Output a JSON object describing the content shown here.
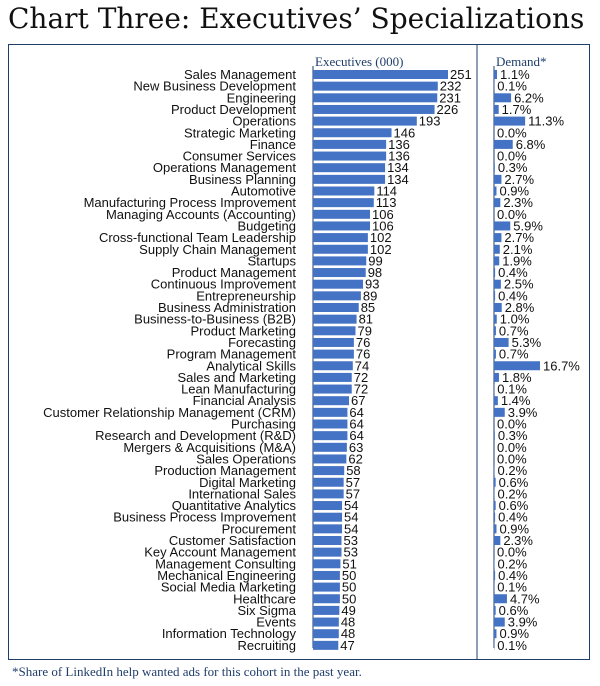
{
  "title": "Chart Three: Executives’ Specializations",
  "footnote": "*Share of LinkedIn help wanted ads for this cohort in the past year.",
  "colors": {
    "bar": "#4472c4",
    "accent": "#1f3d6b"
  },
  "chart_data": [
    {
      "type": "bar",
      "orientation": "horizontal",
      "header": "Executives (000)",
      "categories": [
        "Sales Management",
        "New Business Development",
        "Engineering",
        "Product Development",
        "Operations",
        "Strategic Marketing",
        "Finance",
        "Consumer Services",
        "Operations Management",
        "Business Planning",
        "Automotive",
        "Manufacturing Process Improvement",
        "Managing Accounts (Accounting)",
        "Budgeting",
        "Cross-functional Team Leadership",
        "Supply Chain Management",
        "Startups",
        "Product Management",
        "Continuous Improvement",
        "Entrepreneurship",
        "Business Administration",
        "Business-to-Business (B2B)",
        "Product Marketing",
        "Forecasting",
        "Program Management",
        "Analytical Skills",
        "Sales and Marketing",
        "Lean Manufacturing",
        "Financial Analysis",
        "Customer Relationship Management (CRM)",
        "Purchasing",
        "Research and Development (R&D)",
        "Mergers & Acquisitions (M&A)",
        "Sales Operations",
        "Production Management",
        "Digital Marketing",
        "International Sales",
        "Quantitative Analytics",
        "Business Process Improvement",
        "Procurement",
        "Customer Satisfaction",
        "Key Account Management",
        "Management Consulting",
        "Mechanical Engineering",
        "Social Media Marketing",
        "Healthcare",
        "Six Sigma",
        "Events",
        "Information Technology",
        "Recruiting"
      ],
      "values": [
        251,
        232,
        231,
        226,
        193,
        146,
        136,
        136,
        134,
        134,
        114,
        113,
        106,
        106,
        102,
        102,
        99,
        98,
        93,
        89,
        85,
        81,
        79,
        76,
        76,
        74,
        72,
        72,
        67,
        64,
        64,
        64,
        63,
        62,
        58,
        57,
        57,
        54,
        54,
        54,
        53,
        53,
        51,
        50,
        50,
        50,
        49,
        48,
        48,
        47
      ],
      "value_labels": [
        "251",
        "232",
        "231",
        "226",
        "193",
        "146",
        "136",
        "136",
        "134",
        "134",
        "114",
        "113",
        "106",
        "106",
        "102",
        "102",
        "99",
        "98",
        "93",
        "89",
        "85",
        "81",
        "79",
        "76",
        "76",
        "74",
        "72",
        "72",
        "67",
        "64",
        "64",
        "64",
        "63",
        "62",
        "58",
        "57",
        "57",
        "54",
        "54",
        "54",
        "53",
        "53",
        "51",
        "50",
        "50",
        "50",
        "49",
        "48",
        "48",
        "47"
      ],
      "xlim": [
        0,
        251
      ]
    },
    {
      "type": "bar",
      "orientation": "horizontal",
      "header": "Demand*",
      "values": [
        1.1,
        0.1,
        6.2,
        1.7,
        11.3,
        0.0,
        6.8,
        0.0,
        0.3,
        2.7,
        0.9,
        2.3,
        0.0,
        5.9,
        2.7,
        2.1,
        1.9,
        0.4,
        2.5,
        0.4,
        2.8,
        1.0,
        0.7,
        5.3,
        0.7,
        16.7,
        1.8,
        0.1,
        1.4,
        3.9,
        0.0,
        0.3,
        0.0,
        0.0,
        0.2,
        0.6,
        0.2,
        0.6,
        0.4,
        0.9,
        2.3,
        0.0,
        0.2,
        0.4,
        0.1,
        4.7,
        0.6,
        3.9,
        0.9,
        0.1
      ],
      "value_labels": [
        "1.1%",
        "0.1%",
        "6.2%",
        "1.7%",
        "11.3%",
        "0.0%",
        "6.8%",
        "0.0%",
        "0.3%",
        "2.7%",
        "0.9%",
        "2.3%",
        "0.0%",
        "5.9%",
        "2.7%",
        "2.1%",
        "1.9%",
        "0.4%",
        "2.5%",
        "0.4%",
        "2.8%",
        "1.0%",
        "0.7%",
        "5.3%",
        "0.7%",
        "16.7%",
        "1.8%",
        "0.1%",
        "1.4%",
        "3.9%",
        "0.0%",
        "0.3%",
        "0.0%",
        "0.0%",
        "0.2%",
        "0.6%",
        "0.2%",
        "0.6%",
        "0.4%",
        "0.9%",
        "2.3%",
        "0.0%",
        "0.2%",
        "0.4%",
        "0.1%",
        "4.7%",
        "0.6%",
        "3.9%",
        "0.9%",
        "0.1%"
      ],
      "unit": "%",
      "xlim": [
        0,
        16.7
      ]
    }
  ]
}
